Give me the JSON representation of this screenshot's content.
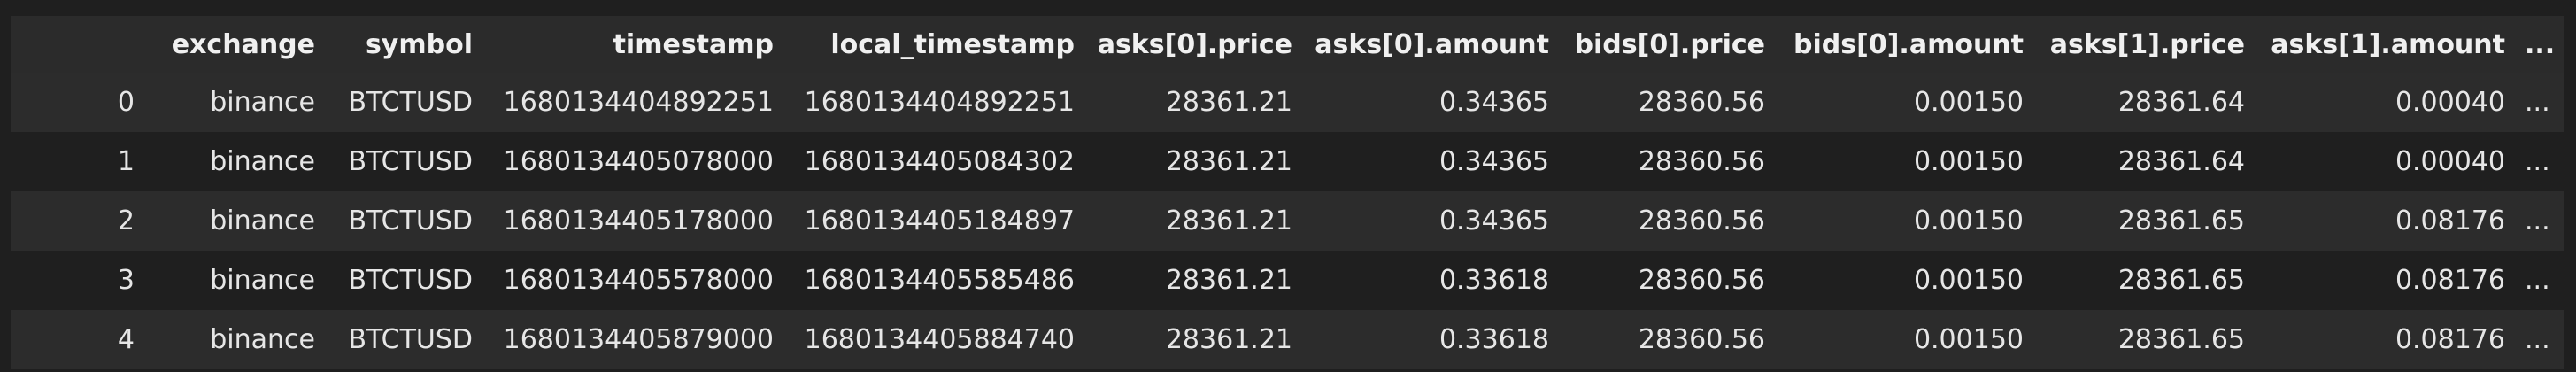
{
  "columns": [
    {
      "key": "exchange",
      "label": "exchange"
    },
    {
      "key": "symbol",
      "label": "symbol"
    },
    {
      "key": "timestamp",
      "label": "timestamp"
    },
    {
      "key": "local_timestamp",
      "label": "local_timestamp"
    },
    {
      "key": "asks0_price",
      "label": "asks[0].price"
    },
    {
      "key": "asks0_amount",
      "label": "asks[0].amount"
    },
    {
      "key": "bids0_price",
      "label": "bids[0].price"
    },
    {
      "key": "bids0_amount",
      "label": "bids[0].amount"
    },
    {
      "key": "asks1_price",
      "label": "asks[1].price"
    },
    {
      "key": "asks1_amount",
      "label": "asks[1].amount"
    },
    {
      "key": "more",
      "label": "..."
    }
  ],
  "rows": [
    {
      "index": "0",
      "cells": [
        "binance",
        "BTCTUSD",
        "1680134404892251",
        "1680134404892251",
        "28361.21",
        "0.34365",
        "28360.56",
        "0.00150",
        "28361.64",
        "0.00040",
        "..."
      ]
    },
    {
      "index": "1",
      "cells": [
        "binance",
        "BTCTUSD",
        "1680134405078000",
        "1680134405084302",
        "28361.21",
        "0.34365",
        "28360.56",
        "0.00150",
        "28361.64",
        "0.00040",
        "..."
      ]
    },
    {
      "index": "2",
      "cells": [
        "binance",
        "BTCTUSD",
        "1680134405178000",
        "1680134405184897",
        "28361.21",
        "0.34365",
        "28360.56",
        "0.00150",
        "28361.65",
        "0.08176",
        "..."
      ]
    },
    {
      "index": "3",
      "cells": [
        "binance",
        "BTCTUSD",
        "1680134405578000",
        "1680134405585486",
        "28361.21",
        "0.33618",
        "28360.56",
        "0.00150",
        "28361.65",
        "0.08176",
        "..."
      ]
    },
    {
      "index": "4",
      "cells": [
        "binance",
        "BTCTUSD",
        "1680134405879000",
        "1680134405884740",
        "28361.21",
        "0.33618",
        "28360.56",
        "0.00150",
        "28361.65",
        "0.08176",
        "..."
      ]
    }
  ],
  "colors": {
    "background": "#1f1f1f",
    "header_bg": "#2b2b2b",
    "stripe_bg": "#2c2c2c",
    "text": "#e6e6e6"
  }
}
